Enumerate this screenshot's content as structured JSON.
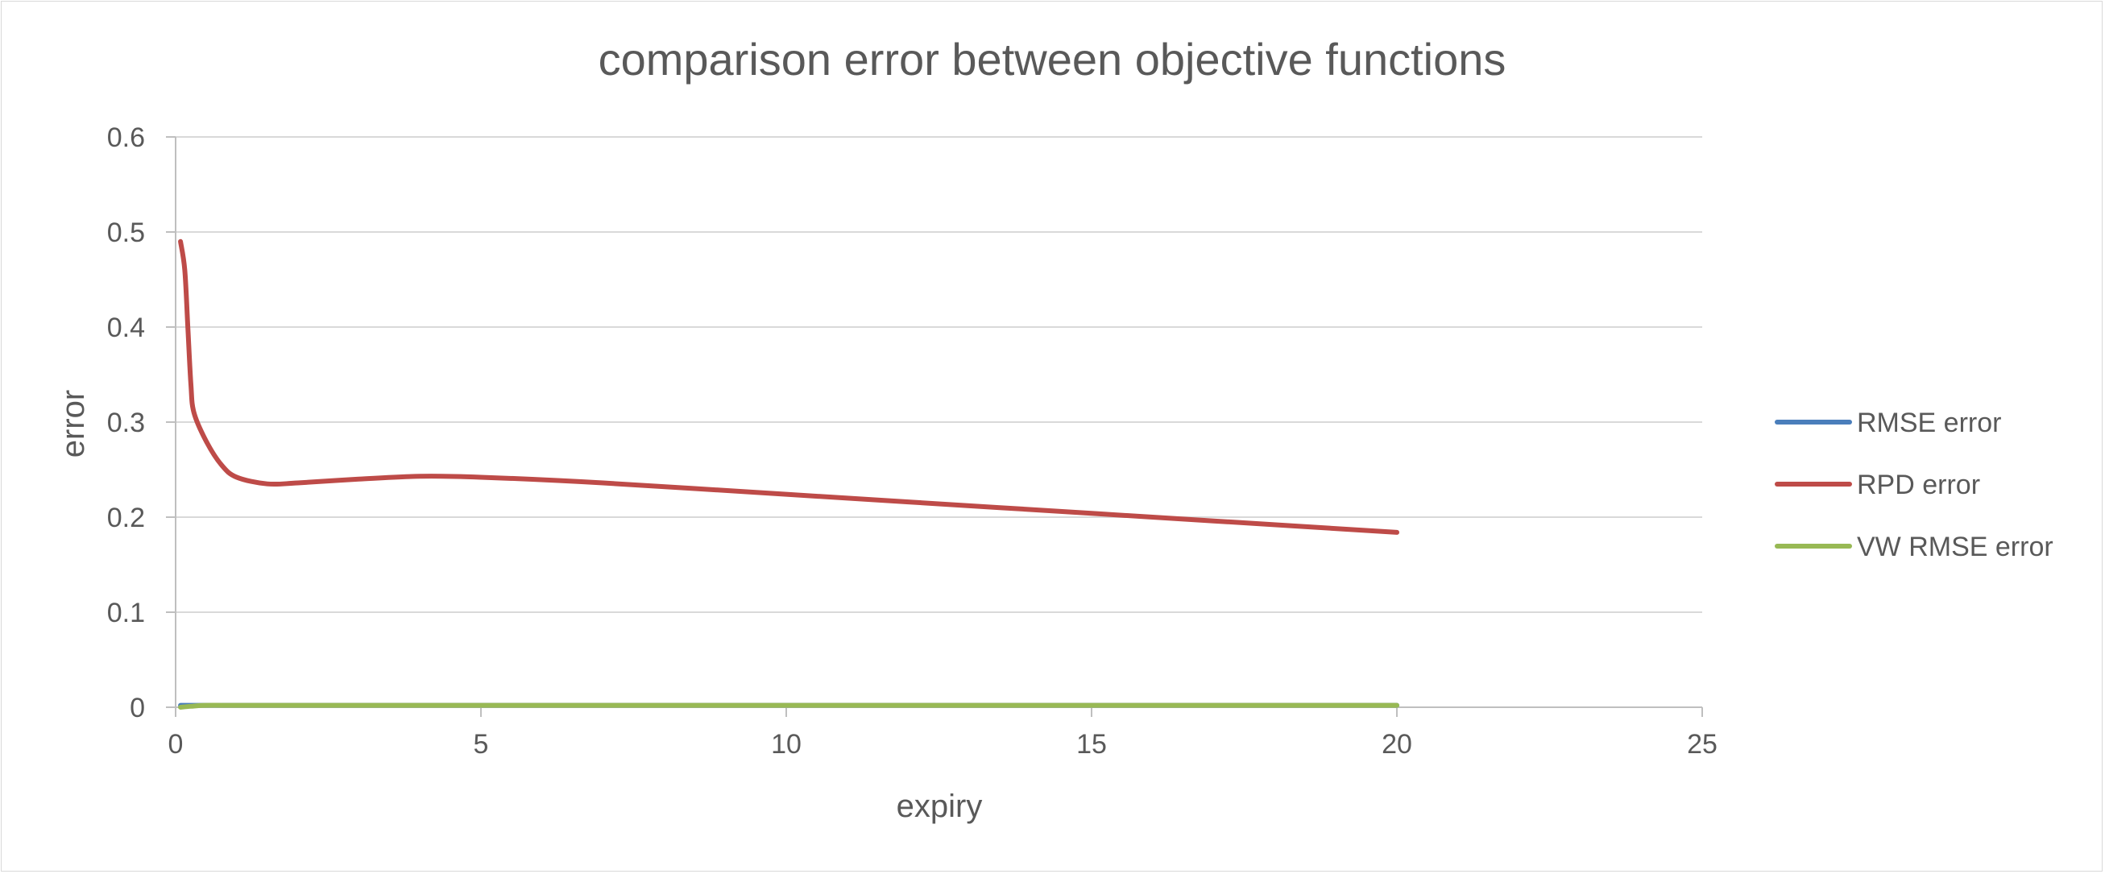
{
  "chart_data": {
    "type": "line",
    "title": "comparison error between objective functions",
    "xlabel": "expiry",
    "ylabel": "error",
    "xlim": [
      0,
      25
    ],
    "ylim": [
      0,
      0.6
    ],
    "x_ticks": [
      0,
      5,
      10,
      15,
      20,
      25
    ],
    "y_ticks": [
      0,
      0.1,
      0.2,
      0.3,
      0.4,
      0.5,
      0.6
    ],
    "x_tick_labels": [
      "0",
      "5",
      "10",
      "15",
      "20",
      "25"
    ],
    "y_tick_labels": [
      "0",
      "0.1",
      "0.2",
      "0.3",
      "0.4",
      "0.5",
      "0.6"
    ],
    "grid": "horizontal",
    "legend_position": "right",
    "series": [
      {
        "name": "RMSE error",
        "color": "#4a7ebb",
        "x": [
          0.08,
          0.25,
          0.5,
          1,
          2,
          3,
          5,
          7,
          10,
          12,
          15,
          17,
          20
        ],
        "y": [
          0.002,
          0.002,
          0.002,
          0.002,
          0.002,
          0.002,
          0.002,
          0.002,
          0.002,
          0.002,
          0.002,
          0.002,
          0.002
        ]
      },
      {
        "name": "RPD error",
        "color": "#be4b48",
        "x": [
          0.08,
          0.15,
          0.2,
          0.25,
          0.3,
          0.5,
          0.75,
          1,
          1.5,
          2,
          3,
          4,
          5,
          7,
          10,
          12,
          15,
          17,
          20
        ],
        "y": [
          0.49,
          0.46,
          0.4,
          0.34,
          0.31,
          0.28,
          0.255,
          0.242,
          0.235,
          0.236,
          0.24,
          0.243,
          0.242,
          0.236,
          0.224,
          0.216,
          0.204,
          0.196,
          0.184
        ]
      },
      {
        "name": "VW RMSE error",
        "color": "#98b954",
        "x": [
          0.08,
          0.25,
          0.5,
          1,
          2,
          3,
          5,
          7,
          10,
          12,
          15,
          17,
          20
        ],
        "y": [
          0.0,
          0.001,
          0.002,
          0.002,
          0.002,
          0.002,
          0.002,
          0.002,
          0.002,
          0.002,
          0.002,
          0.002,
          0.002
        ]
      }
    ]
  }
}
